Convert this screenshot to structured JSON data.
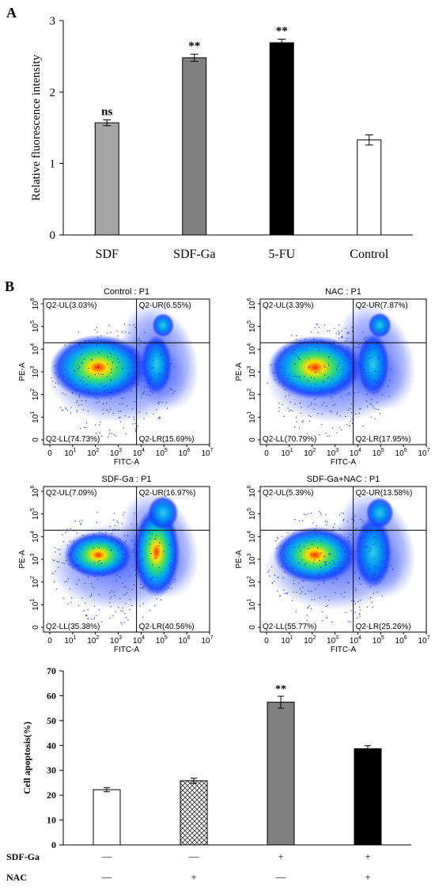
{
  "panels": {
    "a_label": "A",
    "b_label": "B"
  },
  "chart_data": [
    {
      "type": "bar",
      "ylabel": "Relative fluorescence  intensity",
      "ylim": [
        0,
        3
      ],
      "yticks": [
        "0",
        "1",
        "2",
        "3"
      ],
      "categories": [
        "SDF",
        "SDF-Ga",
        "5-FU",
        "Control"
      ],
      "values": [
        1.57,
        2.48,
        2.69,
        1.33
      ],
      "errors": [
        0.04,
        0.05,
        0.05,
        0.07
      ],
      "annotations": [
        "ns",
        "**",
        "**",
        ""
      ],
      "fills": [
        "#a6a6a6",
        "#808080",
        "#000000",
        "#ffffff"
      ]
    },
    {
      "type": "scatter",
      "subtype": "flow-cytometry-quadrants",
      "x_scale": "log",
      "y_scale": "log",
      "xlabel": "FITC-A",
      "ylabel": "PE-A",
      "xticks": [
        "0",
        "10",
        "10",
        "10",
        "10",
        "10",
        "10",
        "10"
      ],
      "xtick_exps": [
        "",
        "1",
        "2",
        "3",
        "4",
        "5",
        "6",
        "7"
      ],
      "yticks": [
        "0",
        "10",
        "10",
        "10",
        "10",
        "10",
        "10"
      ],
      "ytick_exps": [
        "",
        "1",
        "2",
        "3",
        "4",
        "5",
        "6"
      ],
      "plots": [
        {
          "title": "Control : P1",
          "ul": "Q2-UL(3.03%)",
          "ur": "Q2-UR(6.55%)",
          "ll": "Q2-LL(74.73%)",
          "lr": "Q2-LR(15.69%)",
          "ul_pct": 3.03,
          "ur_pct": 6.55,
          "ll_pct": 74.73,
          "lr_pct": 15.69
        },
        {
          "title": "NAC : P1",
          "ul": "Q2-UL(3.39%)",
          "ur": "Q2-UR(7.87%)",
          "ll": "Q2-LL(70.79%)",
          "lr": "Q2-LR(17.95%)",
          "ul_pct": 3.39,
          "ur_pct": 7.87,
          "ll_pct": 70.79,
          "lr_pct": 17.95
        },
        {
          "title": "SDF-Ga : P1",
          "ul": "Q2-UL(7.09%)",
          "ur": "Q2-UR(16.97%)",
          "ll": "Q2-LL(35.38%)",
          "lr": "Q2-LR(40.56%)",
          "ul_pct": 7.09,
          "ur_pct": 16.97,
          "ll_pct": 35.38,
          "lr_pct": 40.56
        },
        {
          "title": "SDF-Ga+NAC : P1",
          "ul": "Q2-UL(5.39%)",
          "ur": "Q2-UR(13.58%)",
          "ll": "Q2-LL(55.77%)",
          "lr": "Q2-LR(25.26%)",
          "ul_pct": 5.39,
          "ur_pct": 13.58,
          "ll_pct": 55.77,
          "lr_pct": 25.26
        }
      ]
    },
    {
      "type": "bar",
      "ylabel": "Cell apoptosis(%)",
      "ylim": [
        0,
        70
      ],
      "yticks": [
        "0",
        "10",
        "20",
        "30",
        "40",
        "50",
        "60",
        "70"
      ],
      "values": [
        22.2,
        25.8,
        57.4,
        38.7
      ],
      "errors": [
        0.8,
        1.0,
        2.4,
        1.2
      ],
      "annotations": [
        "",
        "",
        "**",
        ""
      ],
      "fills": [
        "#ffffff",
        "crosshatch",
        "#808080",
        "#000000"
      ],
      "row_labels": [
        "SDF-Ga",
        "NAC"
      ],
      "rows": [
        [
          "—",
          "—",
          "+",
          "+"
        ],
        [
          "—",
          "+",
          "—",
          "+"
        ]
      ]
    }
  ]
}
